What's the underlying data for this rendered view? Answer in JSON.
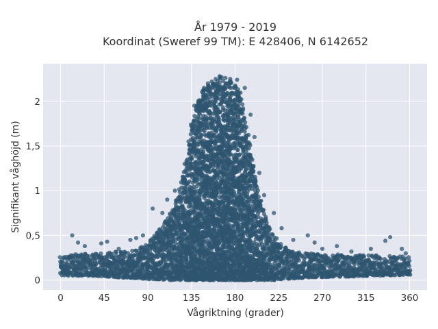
{
  "chart_data": {
    "type": "scatter",
    "title": "År 1979 - 2019",
    "subtitle": "Koordinat (Sweref 99 TM): E 428406, N 6142652",
    "xlabel": "Vågriktning (grader)",
    "ylabel": "Signifikant våghöjd (m)",
    "xlim": [
      -18,
      378
    ],
    "ylim": [
      -0.11,
      2.42
    ],
    "x_ticks": [
      0,
      45,
      90,
      135,
      180,
      225,
      270,
      315,
      360
    ],
    "x_tick_labels": [
      "0",
      "45",
      "90",
      "135",
      "180",
      "225",
      "270",
      "315",
      "360"
    ],
    "y_ticks": [
      0,
      0.5,
      1,
      1.5,
      2
    ],
    "y_tick_labels": [
      "0",
      "0,5",
      "1",
      "1,5",
      "2"
    ],
    "grid": true,
    "legend": "none",
    "marker_color": "#2f5570",
    "background_color": "#e5e7f0",
    "envelope": {
      "direction": [
        0,
        30,
        60,
        80,
        90,
        100,
        110,
        120,
        125,
        130,
        135,
        140,
        145,
        150,
        155,
        160,
        165,
        170,
        175,
        180,
        185,
        190,
        195,
        200,
        205,
        210,
        215,
        220,
        230,
        240,
        260,
        300,
        330,
        360
      ],
      "upper_height": [
        0.28,
        0.3,
        0.32,
        0.35,
        0.42,
        0.55,
        0.7,
        0.95,
        1.1,
        1.35,
        1.75,
        1.95,
        2.1,
        2.15,
        2.2,
        2.25,
        2.27,
        2.24,
        2.23,
        2.2,
        2.1,
        1.9,
        1.55,
        1.2,
        0.95,
        0.75,
        0.6,
        0.5,
        0.38,
        0.33,
        0.3,
        0.28,
        0.28,
        0.26
      ],
      "lower_height": [
        0.05,
        0.05,
        0.03,
        0.02,
        0.01,
        0.01,
        0.0,
        0.0,
        0.0,
        0.0,
        0.0,
        0.0,
        0.0,
        0.0,
        0.0,
        0.0,
        0.0,
        0.0,
        0.0,
        0.0,
        0.0,
        0.0,
        0.0,
        0.0,
        0.0,
        0.0,
        0.0,
        0.0,
        0.01,
        0.02,
        0.03,
        0.04,
        0.05,
        0.06
      ]
    },
    "points": {
      "x": [
        12,
        18,
        25,
        42,
        48,
        60,
        72,
        78,
        85,
        95,
        105,
        110,
        118,
        128,
        132,
        138,
        142,
        148,
        152,
        156,
        160,
        164,
        166,
        170,
        175,
        182,
        190,
        196,
        200,
        205,
        210,
        220,
        228,
        240,
        255,
        262,
        270,
        285,
        300,
        320,
        335,
        340,
        352,
        356
      ],
      "y": [
        0.5,
        0.42,
        0.38,
        0.41,
        0.43,
        0.35,
        0.45,
        0.47,
        0.5,
        0.8,
        0.75,
        0.9,
        1.0,
        1.3,
        1.55,
        1.95,
        2.0,
        2.15,
        2.2,
        2.22,
        2.25,
        2.28,
        2.27,
        2.26,
        2.25,
        2.24,
        2.15,
        1.85,
        1.6,
        1.2,
        0.95,
        0.75,
        0.58,
        0.45,
        0.5,
        0.42,
        0.35,
        0.38,
        0.32,
        0.35,
        0.44,
        0.48,
        0.35,
        0.3
      ]
    }
  }
}
